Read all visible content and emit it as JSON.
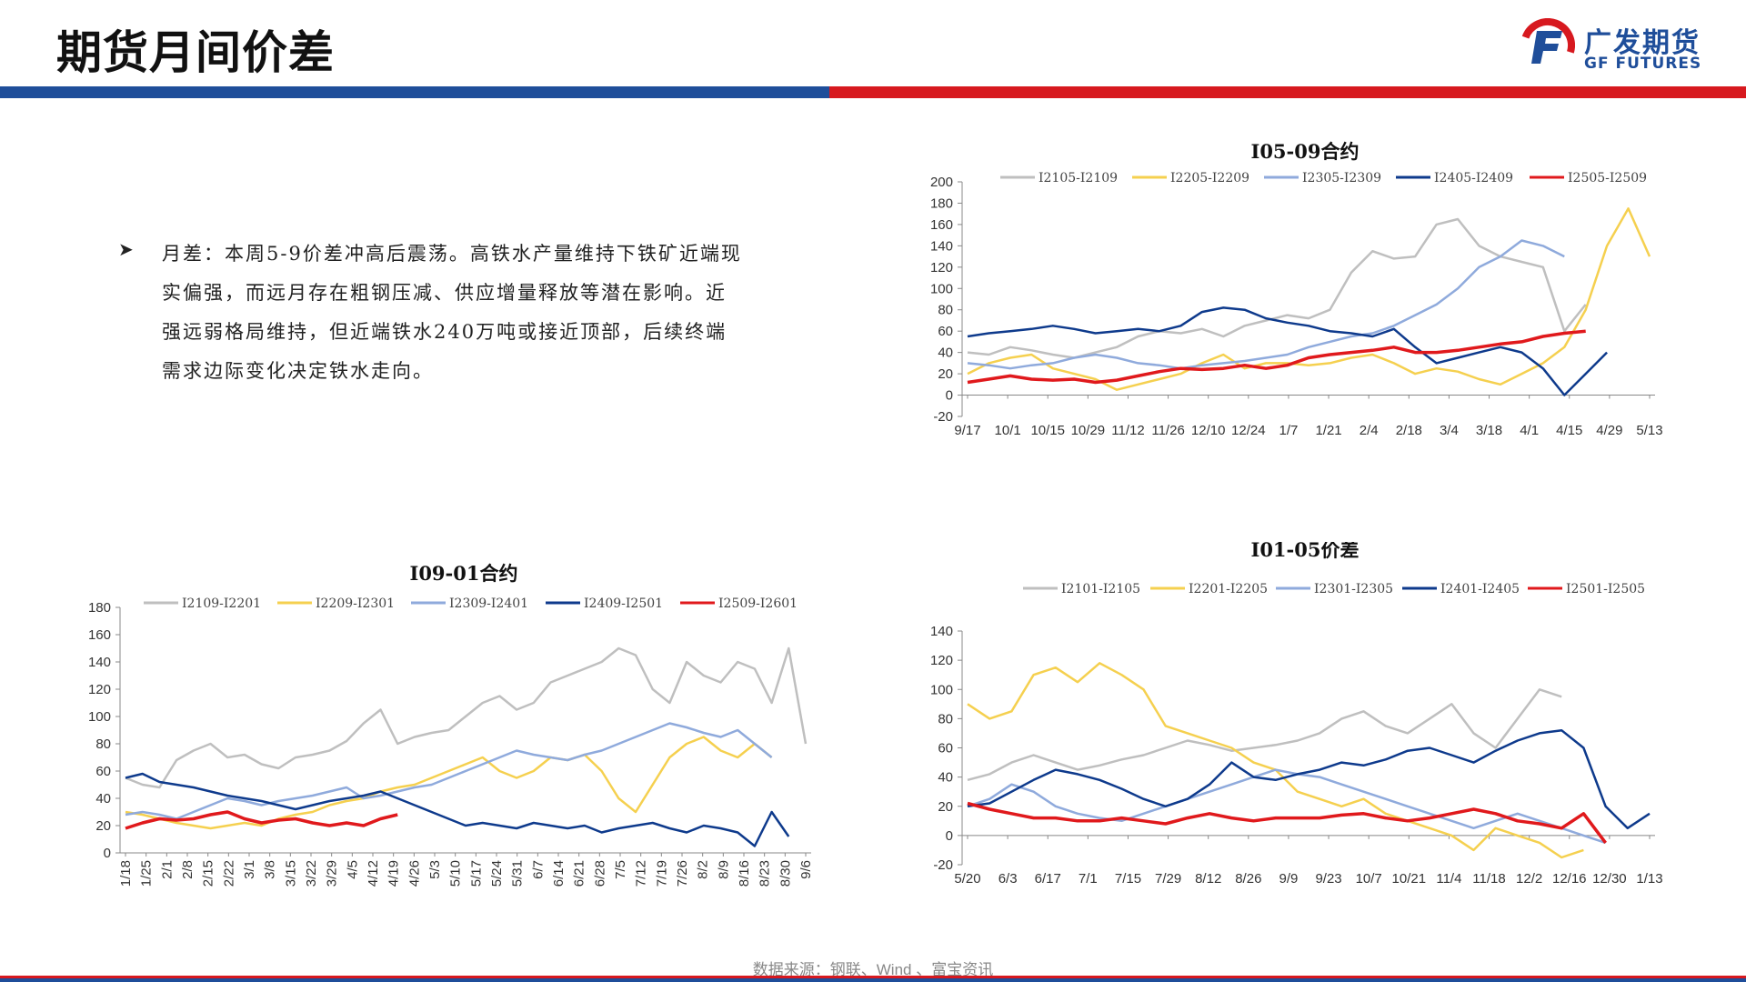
{
  "page": {
    "title": "期货月间价差",
    "source": "数据来源：钢联、Wind 、富宝资讯",
    "bullet": "月差：本周5-9价差冲高后震荡。高铁水产量维持下铁矿近端现实偏强，而远月存在粗钢压减、供应增量释放等潜在影响。近强远弱格局维持，但近端铁水240万吨或接近顶部，后续终端需求边际变化决定铁水走向。"
  },
  "logo": {
    "cn": "广发期货",
    "en": "GF FUTURES"
  },
  "colors": {
    "grey": "#bfbfbf",
    "yellow": "#f5d04f",
    "lightblue": "#8faadc",
    "navy": "#0e3a8c",
    "red": "#e0191c"
  },
  "chart_data": [
    {
      "type": "line",
      "title": "I05-09合约",
      "ylim": [
        -20,
        200
      ],
      "yticks": [
        -20,
        0,
        20,
        40,
        60,
        80,
        100,
        120,
        140,
        160,
        180,
        200
      ],
      "x_labels": [
        "9/17",
        "10/1",
        "10/15",
        "10/29",
        "11/12",
        "11/26",
        "12/10",
        "12/24",
        "1/7",
        "1/21",
        "2/4",
        "2/18",
        "3/4",
        "3/18",
        "4/1",
        "4/15",
        "4/29",
        "5/13"
      ],
      "series": [
        {
          "name": "I2105-I2109",
          "color": "#bfbfbf",
          "values": [
            40,
            38,
            45,
            42,
            38,
            35,
            40,
            45,
            55,
            60,
            58,
            62,
            55,
            65,
            70,
            75,
            72,
            80,
            115,
            135,
            128,
            130,
            160,
            165,
            140,
            130,
            125,
            120,
            60,
            85
          ]
        },
        {
          "name": "I2205-I2209",
          "color": "#f5d04f",
          "values": [
            20,
            30,
            35,
            38,
            25,
            20,
            15,
            5,
            10,
            15,
            20,
            30,
            38,
            25,
            30,
            30,
            28,
            30,
            35,
            38,
            30,
            20,
            25,
            22,
            15,
            10,
            20,
            30,
            45,
            80,
            140,
            175,
            130
          ]
        },
        {
          "name": "I2305-I2309",
          "color": "#8faadc",
          "values": [
            30,
            28,
            25,
            28,
            30,
            35,
            38,
            35,
            30,
            28,
            25,
            28,
            30,
            32,
            35,
            38,
            45,
            50,
            55,
            58,
            65,
            75,
            85,
            100,
            120,
            130,
            145,
            140,
            130
          ]
        },
        {
          "name": "I2405-I2409",
          "color": "#0e3a8c",
          "values": [
            55,
            58,
            60,
            62,
            65,
            62,
            58,
            60,
            62,
            60,
            65,
            78,
            82,
            80,
            72,
            68,
            65,
            60,
            58,
            55,
            62,
            45,
            30,
            35,
            40,
            45,
            40,
            25,
            0,
            20,
            40
          ]
        },
        {
          "name": "I2505-I2509",
          "color": "#e0191c",
          "values": [
            12,
            15,
            18,
            15,
            14,
            15,
            12,
            14,
            18,
            22,
            25,
            24,
            25,
            28,
            25,
            28,
            35,
            38,
            40,
            42,
            45,
            40,
            40,
            42,
            45,
            48,
            50,
            55,
            58,
            60
          ]
        }
      ]
    },
    {
      "type": "line",
      "title": "I09-01合约",
      "ylim": [
        0,
        180
      ],
      "yticks": [
        0,
        20,
        40,
        60,
        80,
        100,
        120,
        140,
        160,
        180
      ],
      "x_labels": [
        "1/18",
        "1/25",
        "2/1",
        "2/8",
        "2/15",
        "2/22",
        "3/1",
        "3/8",
        "3/15",
        "3/22",
        "3/29",
        "4/5",
        "4/12",
        "4/19",
        "4/26",
        "5/3",
        "5/10",
        "5/17",
        "5/24",
        "5/31",
        "6/7",
        "6/14",
        "6/21",
        "6/28",
        "7/5",
        "7/12",
        "7/19",
        "7/26",
        "8/2",
        "8/9",
        "8/16",
        "8/23",
        "8/30",
        "9/6"
      ],
      "series": [
        {
          "name": "I2109-I2201",
          "color": "#bfbfbf",
          "values": [
            55,
            50,
            48,
            68,
            75,
            80,
            70,
            72,
            65,
            62,
            70,
            72,
            75,
            82,
            95,
            105,
            80,
            85,
            88,
            90,
            100,
            110,
            115,
            105,
            110,
            125,
            130,
            135,
            140,
            150,
            145,
            120,
            110,
            140,
            130,
            125,
            140,
            135,
            110,
            150,
            80
          ]
        },
        {
          "name": "I2209-I2301",
          "color": "#f5d04f",
          "values": [
            30,
            28,
            25,
            22,
            20,
            18,
            20,
            22,
            20,
            25,
            28,
            30,
            35,
            38,
            40,
            45,
            48,
            50,
            55,
            60,
            65,
            70,
            60,
            55,
            60,
            70,
            68,
            72,
            60,
            40,
            30,
            50,
            70,
            80,
            85,
            75,
            70,
            80,
            70
          ]
        },
        {
          "name": "I2309-I2401",
          "color": "#8faadc",
          "values": [
            28,
            30,
            28,
            25,
            30,
            35,
            40,
            38,
            35,
            38,
            40,
            42,
            45,
            48,
            40,
            42,
            45,
            48,
            50,
            55,
            60,
            65,
            70,
            75,
            72,
            70,
            68,
            72,
            75,
            80,
            85,
            90,
            95,
            92,
            88,
            85,
            90,
            80,
            70
          ]
        },
        {
          "name": "I2409-I2501",
          "color": "#0e3a8c",
          "values": [
            55,
            58,
            52,
            50,
            48,
            45,
            42,
            40,
            38,
            35,
            32,
            35,
            38,
            40,
            42,
            45,
            40,
            35,
            30,
            25,
            20,
            22,
            20,
            18,
            22,
            20,
            18,
            20,
            15,
            18,
            20,
            22,
            18,
            15,
            20,
            18,
            15,
            5,
            30,
            12
          ]
        },
        {
          "name": "I2509-I2601",
          "color": "#e0191c",
          "values": [
            18,
            22,
            25,
            24,
            25,
            28,
            30,
            25,
            22,
            24,
            25,
            22,
            20,
            22,
            20,
            25,
            28
          ]
        }
      ]
    },
    {
      "type": "line",
      "title": "I01-05价差",
      "ylim": [
        -20,
        140
      ],
      "yticks": [
        -20,
        0,
        20,
        40,
        60,
        80,
        100,
        120,
        140
      ],
      "x_labels": [
        "5/20",
        "6/3",
        "6/17",
        "7/1",
        "7/15",
        "7/29",
        "8/12",
        "8/26",
        "9/9",
        "9/23",
        "10/7",
        "10/21",
        "11/4",
        "11/18",
        "12/2",
        "12/16",
        "12/30",
        "1/13"
      ],
      "series": [
        {
          "name": "I2101-I2105",
          "color": "#bfbfbf",
          "values": [
            38,
            42,
            50,
            55,
            50,
            45,
            48,
            52,
            55,
            60,
            65,
            62,
            58,
            60,
            62,
            65,
            70,
            80,
            85,
            75,
            70,
            80,
            90,
            70,
            60,
            80,
            100,
            95
          ]
        },
        {
          "name": "I2201-I2205",
          "color": "#f5d04f",
          "values": [
            90,
            80,
            85,
            110,
            115,
            105,
            118,
            110,
            100,
            75,
            70,
            65,
            60,
            50,
            45,
            30,
            25,
            20,
            25,
            15,
            10,
            5,
            0,
            -10,
            5,
            0,
            -5,
            -15,
            -10
          ]
        },
        {
          "name": "I2301-I2305",
          "color": "#8faadc",
          "values": [
            20,
            25,
            35,
            30,
            20,
            15,
            12,
            10,
            15,
            20,
            25,
            30,
            35,
            40,
            45,
            42,
            40,
            35,
            30,
            25,
            20,
            15,
            10,
            5,
            10,
            15,
            10,
            5,
            0,
            -5
          ]
        },
        {
          "name": "I2401-I2405",
          "color": "#0e3a8c",
          "values": [
            20,
            22,
            30,
            38,
            45,
            42,
            38,
            32,
            25,
            20,
            25,
            35,
            50,
            40,
            38,
            42,
            45,
            50,
            48,
            52,
            58,
            60,
            55,
            50,
            58,
            65,
            70,
            72,
            60,
            20,
            5,
            15
          ]
        },
        {
          "name": "I2501-I2505",
          "color": "#e0191c",
          "values": [
            22,
            18,
            15,
            12,
            12,
            10,
            10,
            12,
            10,
            8,
            12,
            15,
            12,
            10,
            12,
            12,
            12,
            14,
            15,
            12,
            10,
            12,
            15,
            18,
            15,
            10,
            8,
            5,
            15,
            -5
          ]
        }
      ]
    }
  ]
}
